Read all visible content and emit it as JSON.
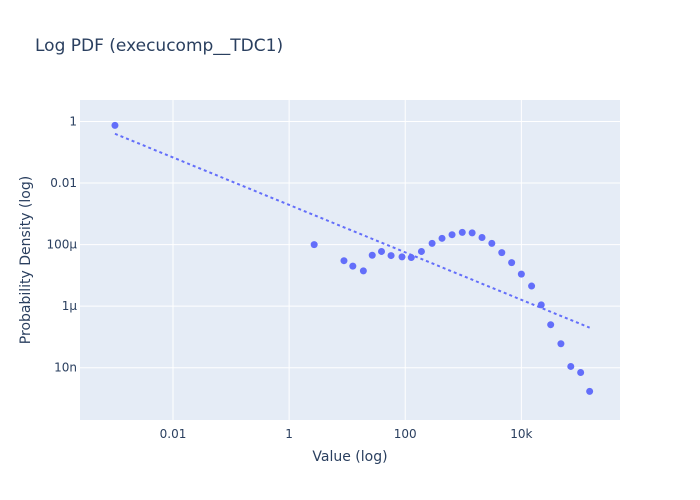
{
  "chart_data": {
    "type": "scatter",
    "title": "Log PDF (execucomp__TDC1)",
    "xlabel": "Value (log)",
    "ylabel": "Probability Density (log)",
    "xscale": "log",
    "yscale": "log",
    "xlim": [
      0.00025,
      500000
    ],
    "ylim": [
      2e-10,
      5
    ],
    "xticks": [
      {
        "value": 0.01,
        "label": "0.01"
      },
      {
        "value": 1,
        "label": "1"
      },
      {
        "value": 100,
        "label": "100"
      },
      {
        "value": 10000,
        "label": "10k"
      }
    ],
    "yticks": [
      {
        "value": 1,
        "label": "1"
      },
      {
        "value": 0.01,
        "label": "0.01"
      },
      {
        "value": 0.0001,
        "label": "100µ"
      },
      {
        "value": 1e-06,
        "label": "1µ"
      },
      {
        "value": 1e-08,
        "label": "10n"
      }
    ],
    "grid": true,
    "legend": "none",
    "colors": {
      "background": "#ffffff",
      "plot_background": "#e5ecf6",
      "grid": "#ffffff",
      "marker": "#636efa",
      "text": "#2a3f5f"
    },
    "series": [
      {
        "mode": "markers",
        "x": [
          0.001,
          2.7,
          8.8,
          12.5,
          19,
          27,
          39,
          57,
          88,
          127,
          190,
          290,
          430,
          640,
          960,
          1420,
          2100,
          3100,
          4600,
          6800,
          10000,
          15000,
          22000,
          32000,
          48000,
          71000,
          105000,
          150000
        ],
        "y": [
          0.75,
          0.0001,
          3e-05,
          2e-05,
          1.4e-05,
          4.5e-05,
          6e-05,
          4.4e-05,
          4e-05,
          3.8e-05,
          6e-05,
          0.00011,
          0.00016,
          0.00021,
          0.00025,
          0.00024,
          0.00017,
          0.00011,
          5.5e-05,
          2.6e-05,
          1.1e-05,
          4.5e-06,
          1.1e-06,
          2.5e-07,
          6e-08,
          1.1e-08,
          7e-09,
          1.7e-09
        ]
      },
      {
        "mode": "lines",
        "dash": "dot",
        "x": [
          0.001,
          150000
        ],
        "y": [
          0.4,
          2e-07
        ]
      }
    ]
  }
}
